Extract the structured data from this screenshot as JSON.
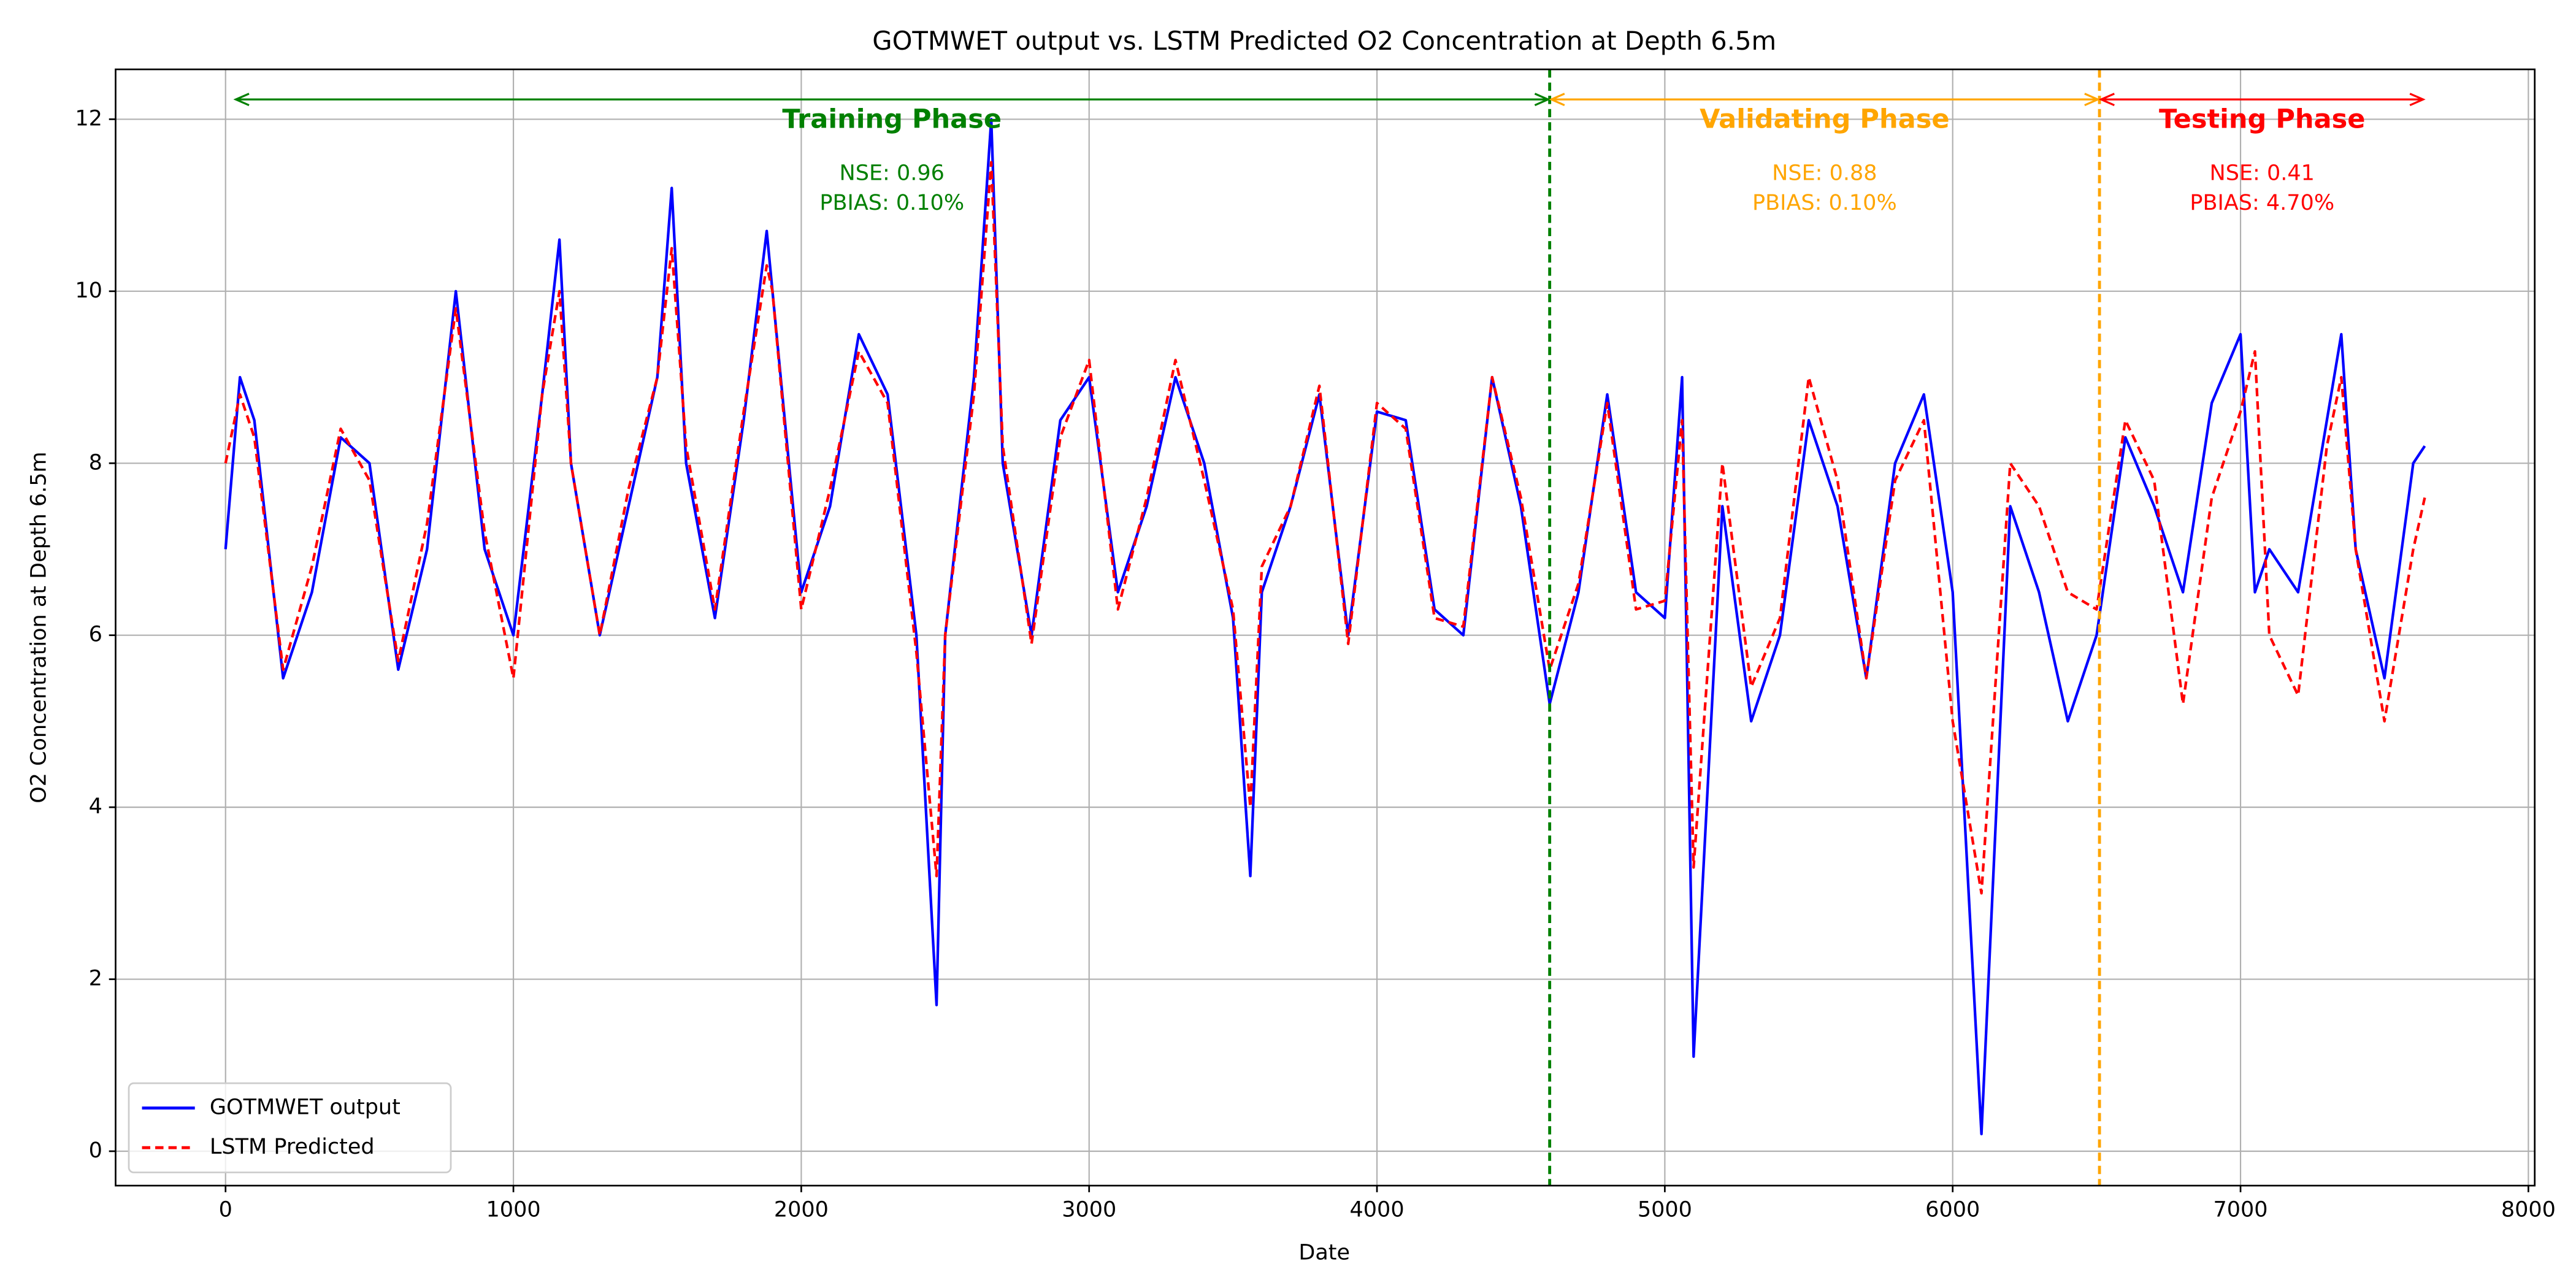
{
  "chart_data": {
    "type": "line",
    "title": "GOTMWET output vs. LSTM Predicted O2 Concentration at Depth 6.5m",
    "x_label": "Date",
    "y_label": "O2 Concentration at Depth 6.5m",
    "x": [
      0,
      50,
      100,
      200,
      300,
      400,
      500,
      600,
      700,
      800,
      900,
      1000,
      1100,
      1160,
      1200,
      1300,
      1400,
      1500,
      1550,
      1600,
      1700,
      1800,
      1880,
      1900,
      2000,
      2100,
      2200,
      2300,
      2400,
      2470,
      2500,
      2600,
      2660,
      2700,
      2800,
      2900,
      3000,
      3100,
      3200,
      3300,
      3400,
      3500,
      3560,
      3600,
      3700,
      3800,
      3900,
      4000,
      4100,
      4200,
      4300,
      4400,
      4500,
      4600,
      4700,
      4800,
      4900,
      5000,
      5060,
      5100,
      5200,
      5300,
      5400,
      5500,
      5600,
      5700,
      5800,
      5900,
      6000,
      6100,
      6200,
      6300,
      6400,
      6500,
      6600,
      6700,
      6800,
      6900,
      7000,
      7050,
      7100,
      7200,
      7300,
      7350,
      7400,
      7500,
      7600,
      7640
    ],
    "series": [
      {
        "name": "GOTMWET output",
        "color": "#0000ff",
        "dashed": false,
        "values": [
          7.0,
          9.0,
          8.5,
          5.5,
          6.5,
          8.3,
          8.0,
          5.6,
          7.0,
          10.0,
          7.0,
          6.0,
          8.8,
          10.6,
          8.0,
          6.0,
          7.5,
          9.0,
          11.2,
          8.0,
          6.2,
          8.5,
          10.7,
          10.0,
          6.5,
          7.5,
          9.5,
          8.8,
          6.0,
          1.7,
          6.0,
          9.0,
          12.0,
          8.0,
          6.0,
          8.5,
          9.0,
          6.5,
          7.5,
          9.0,
          8.0,
          6.2,
          3.2,
          6.5,
          7.5,
          8.8,
          6.0,
          8.6,
          8.5,
          6.3,
          6.0,
          9.0,
          7.5,
          5.2,
          6.5,
          8.8,
          6.5,
          6.2,
          9.0,
          1.1,
          7.5,
          5.0,
          6.0,
          8.5,
          7.5,
          5.5,
          8.0,
          8.8,
          6.5,
          0.2,
          7.5,
          6.5,
          5.0,
          6.0,
          8.3,
          7.5,
          6.5,
          8.7,
          9.5,
          6.5,
          7.0,
          6.5,
          8.5,
          9.5,
          7.0,
          5.5,
          8.0,
          8.2
        ]
      },
      {
        "name": "LSTM Predicted",
        "color": "#ff0000",
        "dashed": true,
        "values": [
          8.0,
          8.8,
          8.3,
          5.6,
          6.8,
          8.4,
          7.8,
          5.7,
          7.3,
          9.8,
          7.2,
          5.5,
          8.8,
          10.0,
          8.0,
          6.0,
          7.7,
          9.0,
          10.5,
          8.2,
          6.3,
          8.6,
          10.3,
          10.0,
          6.3,
          7.7,
          9.3,
          8.7,
          5.8,
          3.2,
          6.0,
          8.8,
          11.5,
          8.2,
          5.9,
          8.3,
          9.2,
          6.3,
          7.6,
          9.2,
          7.8,
          6.3,
          4.0,
          6.8,
          7.5,
          8.9,
          5.9,
          8.7,
          8.4,
          6.2,
          6.1,
          9.0,
          7.6,
          5.6,
          6.6,
          8.7,
          6.3,
          6.4,
          8.5,
          3.3,
          8.0,
          5.4,
          6.2,
          9.0,
          7.8,
          5.5,
          7.8,
          8.5,
          5.0,
          3.0,
          8.0,
          7.5,
          6.5,
          6.3,
          8.5,
          7.8,
          5.2,
          7.6,
          8.6,
          9.3,
          6.0,
          5.3,
          8.2,
          9.0,
          7.0,
          5.0,
          7.0,
          7.6
        ]
      }
    ],
    "phases": [
      {
        "name": "Training Phase",
        "start": 30,
        "end": 4600,
        "color": "#008000",
        "nse": "NSE: 0.96",
        "pbias": "PBIAS: 0.10%"
      },
      {
        "name": "Validating Phase",
        "start": 4600,
        "end": 6510,
        "color": "#ffa500",
        "nse": "NSE: 0.88",
        "pbias": "PBIAS: 0.10%"
      },
      {
        "name": "Testing Phase",
        "start": 6510,
        "end": 7640,
        "color": "#ff0000",
        "nse": "NSE: 0.41",
        "pbias": "PBIAS: 4.70%"
      }
    ],
    "arrow_y": 12.23,
    "xlim": [
      -382,
      8022
    ],
    "ylim": [
      -0.4,
      12.58
    ],
    "xticks": [
      0,
      1000,
      2000,
      3000,
      4000,
      5000,
      6000,
      7000,
      8000
    ],
    "yticks": [
      0,
      2,
      4,
      6,
      8,
      10,
      12
    ],
    "grid": true,
    "legend": "lower left"
  }
}
